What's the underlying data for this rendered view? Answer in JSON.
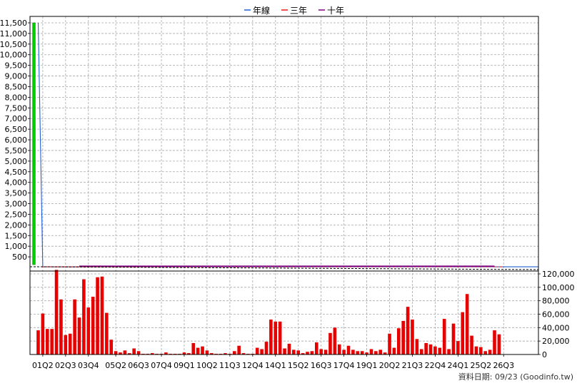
{
  "legend": [
    {
      "label": "年線",
      "color": "#1f5fd6"
    },
    {
      "label": "三年",
      "color": "#e01a1a"
    },
    {
      "label": "十年",
      "color": "#800080"
    }
  ],
  "footer": {
    "note": "資料日期: 09/23  (Goodinfo.tw)"
  },
  "chart_data": [
    {
      "type": "line",
      "panel": "price",
      "ylim": [
        0,
        11500
      ],
      "yticks": [
        500,
        1000,
        1500,
        2000,
        2500,
        3000,
        3500,
        4000,
        4500,
        5000,
        5500,
        6000,
        6500,
        7000,
        7500,
        8000,
        8500,
        9000,
        9500,
        10000,
        10500,
        11000,
        11500
      ],
      "grid": true,
      "series": [
        {
          "name": "年線",
          "color": "#1f5fd6",
          "values": [
            {
              "q": "01Q1",
              "v": 11500
            },
            {
              "q": "01Q2",
              "v": 30
            },
            {
              "q": "26Q3",
              "v": 30
            }
          ]
        },
        {
          "name": "三年",
          "color": "#e01a1a",
          "values": [
            {
              "q": "01Q2",
              "v": 30
            },
            {
              "q": "26Q3",
              "v": 30
            }
          ]
        },
        {
          "name": "十年",
          "color": "#800080",
          "values": [
            {
              "q": "03Q2",
              "v": 60
            },
            {
              "q": "22Q2",
              "v": 60
            },
            {
              "q": "26Q1",
              "v": 60
            }
          ]
        }
      ]
    },
    {
      "type": "bar",
      "panel": "volume",
      "ylim": [
        0,
        120000
      ],
      "yticks": [
        0,
        20000,
        40000,
        60000,
        80000,
        100000,
        120000
      ],
      "ytick_labels": [
        "0",
        "20,000",
        "40,000",
        "60,000",
        "80,000",
        "100,000",
        "120,000"
      ],
      "xtick_labels": [
        "01Q2",
        "02Q3",
        "03Q4",
        "05Q2",
        "06Q3",
        "07Q4",
        "09Q1",
        "10Q2",
        "11Q3",
        "12Q4",
        "14Q1",
        "15Q2",
        "16Q3",
        "17Q4",
        "19Q1",
        "20Q2",
        "21Q3",
        "22Q4",
        "24Q1",
        "25Q2",
        "26Q3"
      ],
      "bar_color": "#e60000",
      "values": [
        36000,
        61000,
        38000,
        38000,
        126000,
        82000,
        29000,
        31000,
        82000,
        55000,
        112000,
        70000,
        86000,
        115000,
        116000,
        62000,
        22000,
        5000,
        3000,
        6000,
        2000,
        9000,
        5000,
        1000,
        1000,
        2000,
        1000,
        1000,
        3000,
        1000,
        1000,
        1000,
        3000,
        2000,
        17000,
        10000,
        12000,
        6000,
        2000,
        1000,
        1000,
        2000,
        1000,
        5000,
        13000,
        2000,
        1000,
        1000,
        10000,
        8000,
        19000,
        52000,
        49000,
        49000,
        9000,
        16000,
        7000,
        6000,
        2000,
        4000,
        5000,
        18000,
        8000,
        7000,
        32000,
        40000,
        15000,
        7000,
        13000,
        7000,
        5000,
        5000,
        3000,
        8000,
        5000,
        7000,
        3000,
        31000,
        10000,
        39000,
        50000,
        71000,
        52000,
        23000,
        8000,
        17000,
        15000,
        12000,
        10000,
        53000,
        8000,
        46000,
        20000,
        63000,
        90000,
        28000,
        12000,
        11000,
        5000,
        7000,
        36000,
        30000
      ]
    }
  ]
}
